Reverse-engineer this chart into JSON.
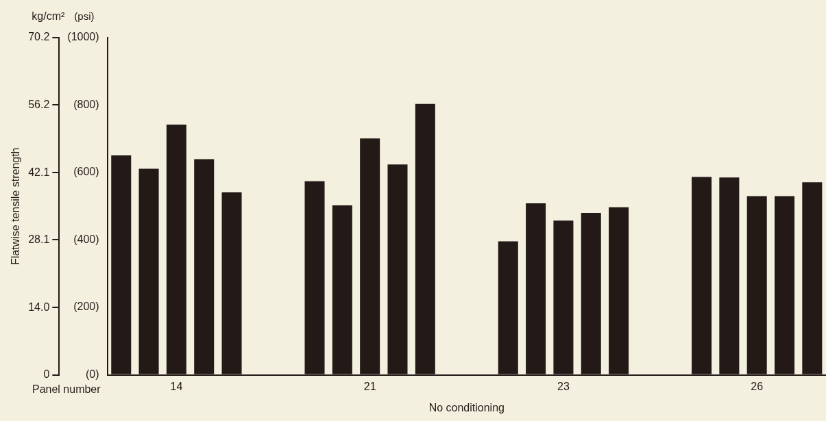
{
  "chart_data": {
    "type": "bar",
    "ylabel": "Flatwise tensile strength",
    "y2label": "(psi)",
    "xlabel": "No conditioning",
    "annotations": [
      "kg/cm²",
      "Panel number"
    ],
    "categories": [
      null,
      null,
      "14",
      null,
      null,
      null,
      null,
      null,
      null,
      "21",
      null,
      null,
      null,
      null,
      null,
      null,
      "23",
      null,
      null,
      null,
      null,
      null,
      null,
      "26",
      null,
      null
    ],
    "values": [
      45.7,
      42.9,
      52.1,
      44.9,
      38.0,
      null,
      null,
      40.3,
      35.3,
      49.2,
      43.8,
      56.4,
      null,
      null,
      27.8,
      35.7,
      32.1,
      33.7,
      34.9,
      null,
      null,
      41.2,
      41.1,
      37.2,
      37.2,
      40.1
    ],
    "color": "#231a17",
    "ylim": [
      0,
      70.2
    ],
    "yticks": [
      0,
      {
        "value": 14,
        "label": "14.0"
      },
      28.1,
      42.1,
      56.2,
      70.2
    ],
    "y2lim": [
      0,
      1000
    ],
    "y2ticks": [
      {
        "value": 0,
        "label": "(0)"
      },
      {
        "value": 200,
        "label": "(200)"
      },
      {
        "value": 400,
        "label": "(400)"
      },
      {
        "value": 600,
        "label": "(600)"
      },
      {
        "value": 800,
        "label": "(800)"
      },
      {
        "value": 1000,
        "label": "(1000)"
      }
    ],
    "grid": false,
    "legend": false
  }
}
